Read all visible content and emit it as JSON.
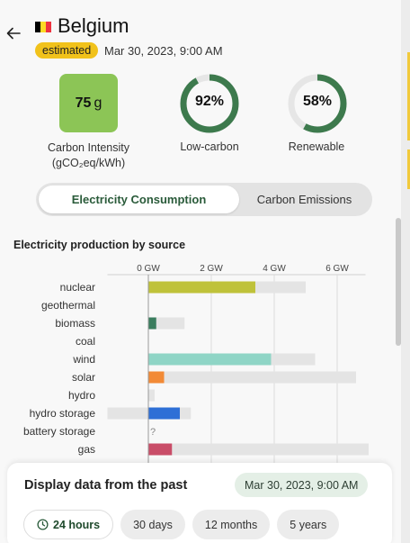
{
  "header": {
    "country": "Belgium",
    "badge": "estimated",
    "datetime": "Mar 30, 2023, 9:00 AM",
    "flag_colors": [
      "#000000",
      "#fdda24",
      "#ef3340"
    ]
  },
  "stats": {
    "carbon_intensity": {
      "value": "75",
      "unit": "g",
      "label_line1": "Carbon Intensity",
      "label_line2": "(gCO₂eq/kWh)"
    },
    "low_carbon": {
      "value": "92%",
      "percent": 92,
      "label": "Low-carbon"
    },
    "renewable": {
      "value": "58%",
      "percent": 58,
      "label": "Renewable"
    }
  },
  "toggle": {
    "active": "Electricity Consumption",
    "inactive": "Carbon Emissions"
  },
  "chart_title": "Electricity production by source",
  "chart_data": {
    "type": "bar",
    "title": "Electricity production by source",
    "axis_ticks": [
      "0 GW",
      "2 GW",
      "4 GW",
      "6 GW"
    ],
    "xlim": [
      -1.3,
      6.9
    ],
    "categories": [
      "nuclear",
      "geothermal",
      "biomass",
      "coal",
      "wind",
      "solar",
      "hydro",
      "hydro storage",
      "battery storage",
      "gas"
    ],
    "production": [
      3.4,
      null,
      0.25,
      null,
      3.9,
      0.5,
      null,
      1.0,
      null,
      0.75
    ],
    "capacity": [
      5.0,
      null,
      1.15,
      null,
      5.3,
      6.6,
      0.2,
      1.35,
      null,
      7.0
    ],
    "capacity_negative": [
      0,
      0,
      0,
      0,
      0,
      0,
      0,
      -1.3,
      0,
      0
    ],
    "colors": [
      "#bfc23a",
      null,
      "#3a7d5e",
      null,
      "#8fd5c6",
      "#f28a36",
      null,
      "#2e6fd6",
      null,
      "#c94d68"
    ],
    "unknown_marker": "?"
  },
  "footer": {
    "title": "Display data from the past",
    "date": "Mar 30, 2023, 9:00 AM",
    "ranges": [
      "24 hours",
      "30 days",
      "12 months",
      "5 years"
    ]
  }
}
